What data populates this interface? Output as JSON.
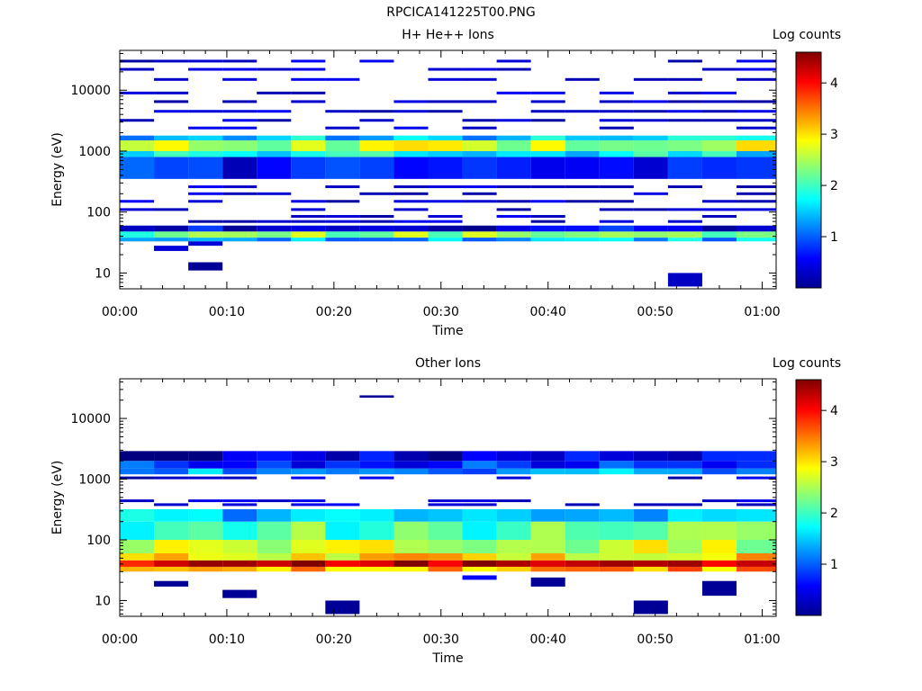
{
  "page_title": "RPCICA141225T00.PNG",
  "chart_data": [
    {
      "type": "heatmap",
      "title": "H+ He++ Ions",
      "xlabel": "Time",
      "ylabel": "Energy (eV)",
      "yscale": "log",
      "xlim_minutes": [
        0,
        61.3
      ],
      "ylim": [
        5.5,
        45000
      ],
      "x_ticks": [
        "00:00",
        "00:10",
        "00:20",
        "00:30",
        "00:40",
        "00:50",
        "01:00"
      ],
      "y_ticks": [
        "10",
        "100",
        "1000",
        "10000"
      ],
      "colorbar": {
        "label": "Log counts",
        "ticks": [
          "1",
          "2",
          "3",
          "4"
        ],
        "range": [
          0,
          4.6
        ]
      },
      "time_bins_minutes": [
        0,
        3.2,
        6.4,
        9.6,
        12.8,
        16,
        19.2,
        22.4,
        25.6,
        28.8,
        32,
        35.2,
        38.4,
        41.6,
        44.8,
        48,
        51.2,
        54.4,
        57.6,
        61.3
      ],
      "energy_bands": [
        {
          "e_low": 38,
          "e_high": 48,
          "value": 2.3
        },
        {
          "e_low": 33,
          "e_high": 38,
          "value": 1.4
        },
        {
          "e_low": 1000,
          "e_high": 1500,
          "value": 2.6
        },
        {
          "e_low": 800,
          "e_high": 1000,
          "value": 1.7
        },
        {
          "e_low": 1500,
          "e_high": 1800,
          "value": 1.5
        },
        {
          "e_low": 350,
          "e_high": 800,
          "value": 0.6
        },
        {
          "e_low": 48,
          "e_high": 60,
          "value": 0.5
        }
      ],
      "sparse_cells": [
        {
          "e_low": 11,
          "e_high": 15,
          "t_start": 6.4,
          "t_end": 9.6,
          "value": 0.1
        },
        {
          "e_low": 6,
          "e_high": 10,
          "t_start": 51.2,
          "t_end": 54.4,
          "value": 0.3
        },
        {
          "e_low": 23,
          "e_high": 28,
          "t_start": 3.2,
          "t_end": 6.4,
          "value": 0.4
        },
        {
          "e_low": 28,
          "e_high": 33,
          "t_start": 6.4,
          "t_end": 9.6,
          "value": 0.4
        }
      ],
      "sparse_line_energies": [
        30000,
        22000,
        15000,
        9000,
        6500,
        4500,
        3200,
        2400,
        260,
        200,
        150,
        110,
        85,
        70
      ],
      "sparse_line_value": 0.15
    },
    {
      "type": "heatmap",
      "title": "Other Ions",
      "xlabel": "Time",
      "ylabel": "Energy (eV)",
      "yscale": "log",
      "xlim_minutes": [
        0,
        61.3
      ],
      "ylim": [
        5.5,
        45000
      ],
      "x_ticks": [
        "00:00",
        "00:10",
        "00:20",
        "00:30",
        "00:40",
        "00:50",
        "01:00"
      ],
      "y_ticks": [
        "10",
        "100",
        "1000",
        "10000"
      ],
      "colorbar": {
        "label": "Log counts",
        "ticks": [
          "1",
          "2",
          "3",
          "4"
        ],
        "range": [
          0,
          4.6
        ]
      },
      "time_bins_minutes": [
        0,
        3.2,
        6.4,
        9.6,
        12.8,
        16,
        19.2,
        22.4,
        25.6,
        28.8,
        32,
        35.2,
        38.4,
        41.6,
        44.8,
        48,
        51.2,
        54.4,
        57.6,
        61.3
      ],
      "energy_bands": [
        {
          "e_low": 36,
          "e_high": 46,
          "value": 4.3
        },
        {
          "e_low": 30,
          "e_high": 36,
          "value": 3.3
        },
        {
          "e_low": 46,
          "e_high": 60,
          "value": 3.0
        },
        {
          "e_low": 60,
          "e_high": 100,
          "value": 2.6
        },
        {
          "e_low": 100,
          "e_high": 200,
          "value": 2.1
        },
        {
          "e_low": 200,
          "e_high": 320,
          "value": 1.4
        },
        {
          "e_low": 1200,
          "e_high": 1500,
          "value": 1.3
        },
        {
          "e_low": 1500,
          "e_high": 2000,
          "value": 0.8
        },
        {
          "e_low": 2000,
          "e_high": 2900,
          "value": 0.4
        }
      ],
      "sparse_cells": [
        {
          "e_low": 17,
          "e_high": 21,
          "t_start": 3.2,
          "t_end": 6.4,
          "value": 0.1
        },
        {
          "e_low": 11,
          "e_high": 15,
          "t_start": 9.6,
          "t_end": 12.8,
          "value": 0.1
        },
        {
          "e_low": 6,
          "e_high": 10,
          "t_start": 19.2,
          "t_end": 22.4,
          "value": 0.1
        },
        {
          "e_low": 22000,
          "e_high": 24000,
          "t_start": 22.4,
          "t_end": 25.6,
          "value": 0.1
        },
        {
          "e_low": 22,
          "e_high": 26,
          "t_start": 32,
          "t_end": 35.2,
          "value": 0.6
        },
        {
          "e_low": 17,
          "e_high": 24,
          "t_start": 38.4,
          "t_end": 41.6,
          "value": 0.1
        },
        {
          "e_low": 6,
          "e_high": 10,
          "t_start": 48,
          "t_end": 51.2,
          "value": 0.1
        },
        {
          "e_low": 12,
          "e_high": 21,
          "t_start": 54.4,
          "t_end": 57.6,
          "value": 0.1
        }
      ],
      "sparse_line_energies": [
        1050,
        440,
        380
      ],
      "sparse_line_value": 0.15
    }
  ]
}
